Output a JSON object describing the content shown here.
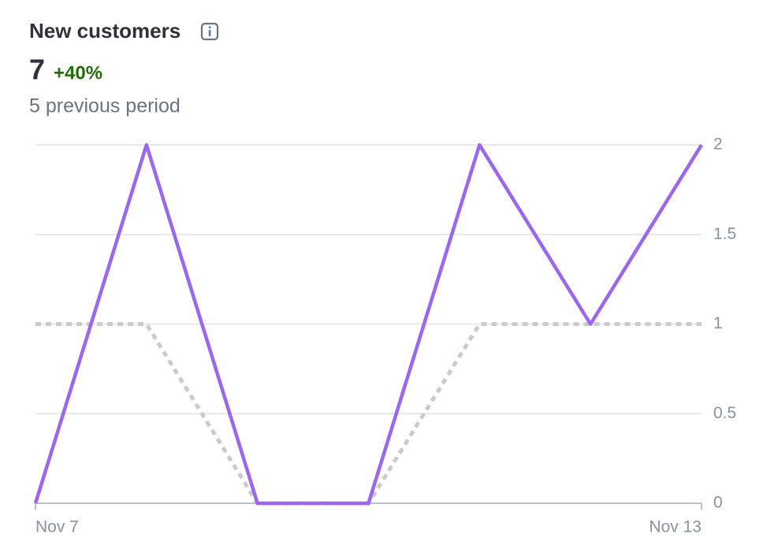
{
  "chart_data": {
    "type": "line",
    "title": "New customers",
    "value": "7",
    "change": "+40%",
    "subtitle": "5 previous period",
    "categories": [
      "Nov 7",
      null,
      null,
      null,
      null,
      null,
      "Nov 13"
    ],
    "series": [
      {
        "color": "#c8ccd0",
        "style": "dashed",
        "values": [
          1,
          1,
          0,
          0,
          1,
          1,
          1
        ]
      },
      {
        "color": "#9b66f0",
        "style": "solid",
        "values": [
          0,
          2,
          0,
          0,
          2,
          1,
          2
        ]
      }
    ],
    "ylim": [
      0,
      2
    ],
    "yticks": [
      0,
      0.5,
      1,
      1.5,
      2
    ],
    "grid": true
  }
}
